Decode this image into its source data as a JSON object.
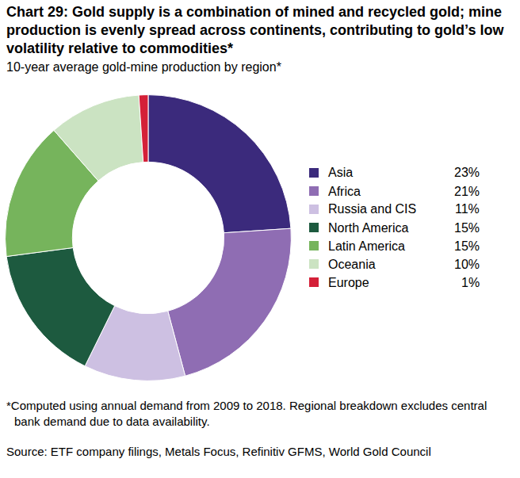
{
  "chart_data": {
    "type": "pie",
    "title": "Chart 29: Gold supply is a combination of mined and recycled gold; mine production is evenly spread across continents, contributing to gold’s low volatility relative to commodities*",
    "subtitle": "10-year average gold-mine production by region*",
    "footnote": "*Computed using annual demand from 2009 to 2018. Regional breakdown excludes central bank demand due to data availability.",
    "source": "Source: ETF company filings, Metals Focus, Refinitiv GFMS, World Gold Council",
    "categories": [
      "Asia",
      "Africa",
      "Russia and CIS",
      "North America",
      "Latin America",
      "Oceania",
      "Europe"
    ],
    "values": [
      23,
      21,
      11,
      15,
      15,
      10,
      1
    ],
    "value_labels": [
      "23%",
      "21%",
      "11%",
      "15%",
      "15%",
      "10%",
      "1%"
    ],
    "colors": [
      "#3b2a7c",
      "#8f6db3",
      "#cdc0e2",
      "#1d5a3f",
      "#76b45c",
      "#cbe3c2",
      "#d42038"
    ],
    "legend": "right"
  }
}
